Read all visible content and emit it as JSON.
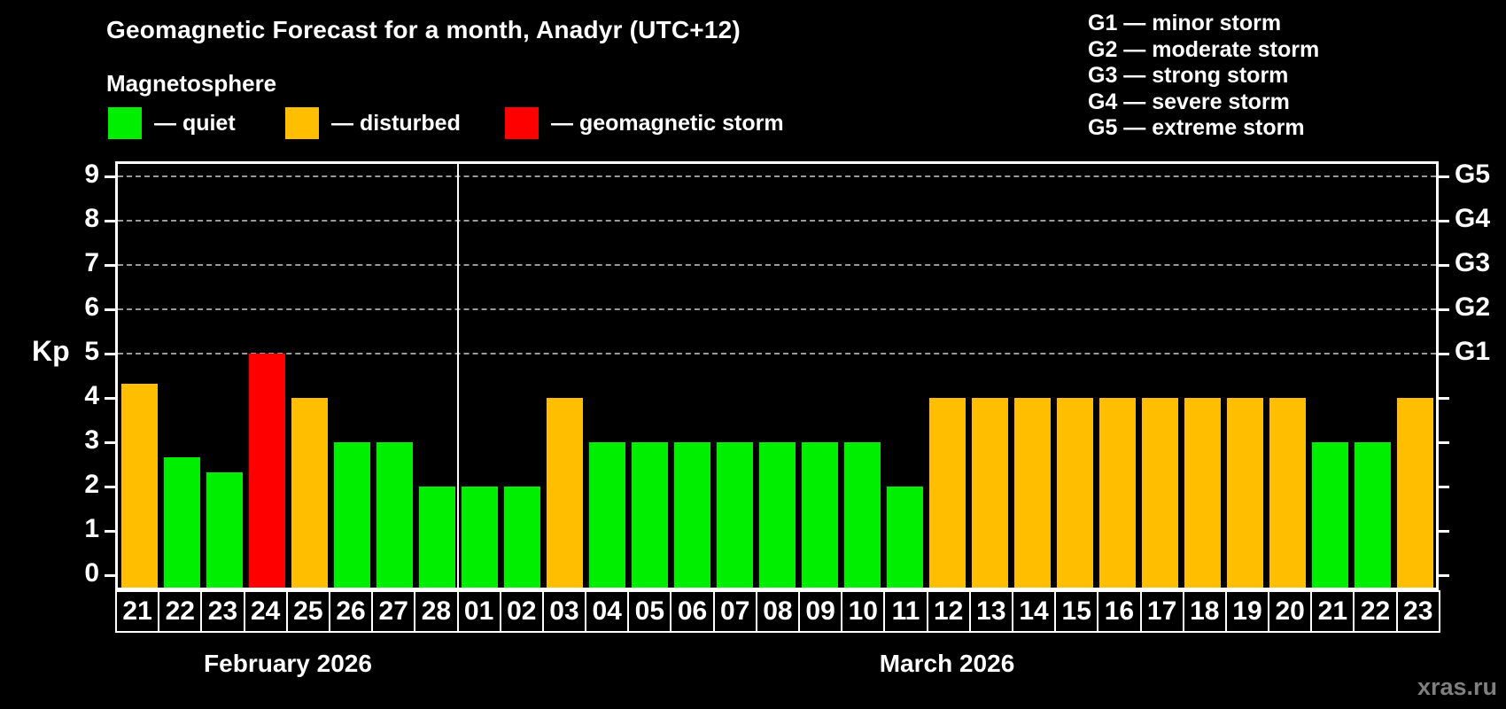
{
  "header": {
    "title": "Geomagnetic Forecast for a month, Anadyr (UTC+12)",
    "subtitle": "Magnetosphere"
  },
  "legend": {
    "items": [
      {
        "key": "quiet",
        "label": "— quiet",
        "color": "#00ee00"
      },
      {
        "key": "disturbed",
        "label": "— disturbed",
        "color": "#ffbe00"
      },
      {
        "key": "storm",
        "label": "— geomagnetic storm",
        "color": "#ff0000"
      }
    ]
  },
  "storm_scale_legend": {
    "items": [
      {
        "code": "G1",
        "label": "G1 — minor storm"
      },
      {
        "code": "G2",
        "label": "G2 — moderate storm"
      },
      {
        "code": "G3",
        "label": "G3 — strong storm"
      },
      {
        "code": "G4",
        "label": "G4 — severe storm"
      },
      {
        "code": "G5",
        "label": "G5 — extreme storm"
      }
    ]
  },
  "chart_data": {
    "type": "bar",
    "ylabel": "Kp",
    "ylim": [
      0,
      9.4
    ],
    "yticks": [
      0,
      1,
      2,
      3,
      4,
      5,
      6,
      7,
      8,
      9
    ],
    "gridlines": {
      "values": [
        5,
        6,
        7,
        8,
        9
      ],
      "style": "dashed",
      "color": "#9a9a9a"
    },
    "right_axis_labels": [
      {
        "label": "G1",
        "kp": 5
      },
      {
        "label": "G2",
        "kp": 6
      },
      {
        "label": "G3",
        "kp": 7
      },
      {
        "label": "G4",
        "kp": 8
      },
      {
        "label": "G5",
        "kp": 9
      }
    ],
    "colors": {
      "quiet": "#00ee00",
      "disturbed": "#ffbe00",
      "storm": "#ff0000"
    },
    "bars": [
      {
        "day": "21",
        "kp": 4.33,
        "status": "disturbed"
      },
      {
        "day": "22",
        "kp": 2.67,
        "status": "quiet"
      },
      {
        "day": "23",
        "kp": 2.33,
        "status": "quiet"
      },
      {
        "day": "24",
        "kp": 5.0,
        "status": "storm"
      },
      {
        "day": "25",
        "kp": 4.0,
        "status": "disturbed"
      },
      {
        "day": "26",
        "kp": 3.0,
        "status": "quiet"
      },
      {
        "day": "27",
        "kp": 3.0,
        "status": "quiet"
      },
      {
        "day": "28",
        "kp": 2.0,
        "status": "quiet"
      },
      {
        "day": "01",
        "kp": 2.0,
        "status": "quiet"
      },
      {
        "day": "02",
        "kp": 2.0,
        "status": "quiet"
      },
      {
        "day": "03",
        "kp": 4.0,
        "status": "disturbed"
      },
      {
        "day": "04",
        "kp": 3.0,
        "status": "quiet"
      },
      {
        "day": "05",
        "kp": 3.0,
        "status": "quiet"
      },
      {
        "day": "06",
        "kp": 3.0,
        "status": "quiet"
      },
      {
        "day": "07",
        "kp": 3.0,
        "status": "quiet"
      },
      {
        "day": "08",
        "kp": 3.0,
        "status": "quiet"
      },
      {
        "day": "09",
        "kp": 3.0,
        "status": "quiet"
      },
      {
        "day": "10",
        "kp": 3.0,
        "status": "quiet"
      },
      {
        "day": "11",
        "kp": 2.0,
        "status": "quiet"
      },
      {
        "day": "12",
        "kp": 4.0,
        "status": "disturbed"
      },
      {
        "day": "13",
        "kp": 4.0,
        "status": "disturbed"
      },
      {
        "day": "14",
        "kp": 4.0,
        "status": "disturbed"
      },
      {
        "day": "15",
        "kp": 4.0,
        "status": "disturbed"
      },
      {
        "day": "16",
        "kp": 4.0,
        "status": "disturbed"
      },
      {
        "day": "17",
        "kp": 4.0,
        "status": "disturbed"
      },
      {
        "day": "18",
        "kp": 4.0,
        "status": "disturbed"
      },
      {
        "day": "19",
        "kp": 4.0,
        "status": "disturbed"
      },
      {
        "day": "20",
        "kp": 4.0,
        "status": "disturbed"
      },
      {
        "day": "21",
        "kp": 3.0,
        "status": "quiet"
      },
      {
        "day": "22",
        "kp": 3.0,
        "status": "quiet"
      },
      {
        "day": "23",
        "kp": 4.0,
        "status": "disturbed"
      }
    ],
    "month_separator_after_index": 7,
    "months": [
      {
        "label": "February 2026",
        "days": 8
      },
      {
        "label": "March 2026",
        "days": 23
      }
    ]
  },
  "footer": {
    "watermark": "xras.ru"
  }
}
